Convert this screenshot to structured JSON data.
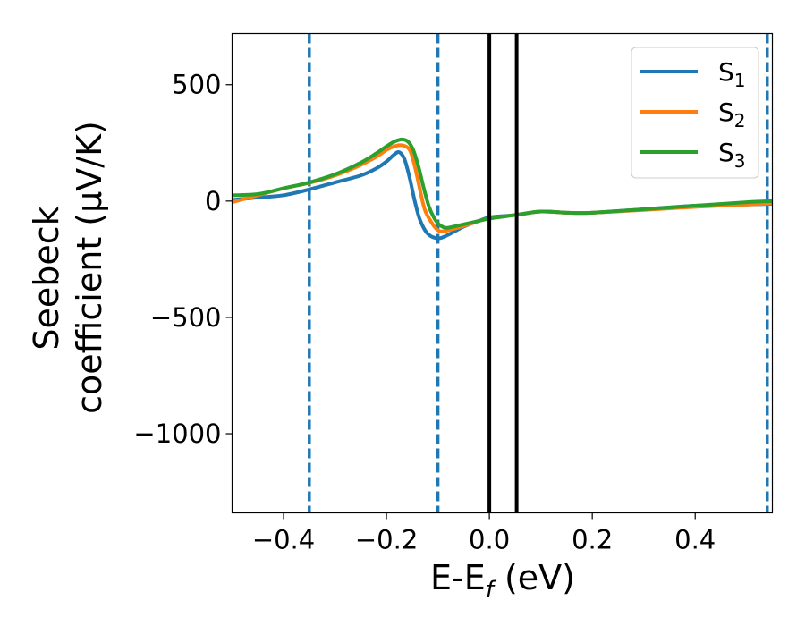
{
  "chart_data": {
    "type": "line",
    "title": "",
    "xlabel_main": "E-E",
    "xlabel_sub": "f",
    "xlabel_unit": " (eV)",
    "ylabel_line1": "Seebeck",
    "ylabel_line2": "coefficient  (μV/K)",
    "xlim": [
      -0.5,
      0.55
    ],
    "ylim": [
      -1340,
      720
    ],
    "xticks": [
      -0.4,
      -0.2,
      0.0,
      0.2,
      0.4
    ],
    "xtick_labels": [
      "−0.4",
      "−0.2",
      "0.0",
      "0.2",
      "0.4"
    ],
    "yticks": [
      500,
      0,
      -500,
      -1000
    ],
    "ytick_labels": [
      "500",
      "0",
      "−500",
      "−1000"
    ],
    "legend_position": "top-right",
    "vlines_dashed": {
      "color": "#1f77b4",
      "x": [
        -0.35,
        -0.1,
        0.54
      ]
    },
    "vlines_solid": {
      "color": "#000000",
      "x": [
        0.0,
        0.053
      ]
    },
    "series": [
      {
        "name": "S",
        "sub": "1",
        "color": "#1f77b4",
        "x": [
          -0.5,
          -0.45,
          -0.4,
          -0.35,
          -0.3,
          -0.25,
          -0.22,
          -0.2,
          -0.185,
          -0.175,
          -0.165,
          -0.155,
          -0.145,
          -0.135,
          -0.12,
          -0.1,
          -0.08,
          -0.05,
          -0.02,
          0.0,
          0.05,
          0.1,
          0.15,
          0.2,
          0.3,
          0.4,
          0.5,
          0.55
        ],
        "y": [
          5,
          15,
          25,
          50,
          80,
          110,
          140,
          170,
          200,
          210,
          180,
          100,
          0,
          -80,
          -140,
          -160,
          -145,
          -110,
          -85,
          -70,
          -60,
          -45,
          -50,
          -50,
          -35,
          -20,
          -15,
          -12
        ]
      },
      {
        "name": "S",
        "sub": "2",
        "color": "#ff7f0e",
        "x": [
          -0.5,
          -0.45,
          -0.4,
          -0.35,
          -0.3,
          -0.25,
          -0.22,
          -0.2,
          -0.185,
          -0.17,
          -0.155,
          -0.145,
          -0.135,
          -0.125,
          -0.11,
          -0.1,
          -0.09,
          -0.07,
          -0.04,
          -0.02,
          0.0,
          0.05,
          0.1,
          0.15,
          0.2,
          0.3,
          0.4,
          0.5,
          0.55
        ],
        "y": [
          -5,
          25,
          55,
          78,
          110,
          155,
          190,
          220,
          235,
          240,
          220,
          150,
          50,
          -40,
          -100,
          -125,
          -130,
          -120,
          -100,
          -85,
          -75,
          -60,
          -45,
          -50,
          -50,
          -38,
          -25,
          -15,
          -10
        ]
      },
      {
        "name": "S",
        "sub": "3",
        "color": "#2ca02c",
        "x": [
          -0.5,
          -0.45,
          -0.4,
          -0.35,
          -0.3,
          -0.25,
          -0.22,
          -0.2,
          -0.185,
          -0.17,
          -0.158,
          -0.148,
          -0.138,
          -0.128,
          -0.118,
          -0.108,
          -0.098,
          -0.085,
          -0.07,
          -0.05,
          -0.02,
          0.0,
          0.05,
          0.1,
          0.15,
          0.2,
          0.3,
          0.4,
          0.5,
          0.55
        ],
        "y": [
          25,
          30,
          55,
          80,
          115,
          165,
          205,
          235,
          255,
          265,
          255,
          220,
          150,
          60,
          -20,
          -70,
          -100,
          -115,
          -110,
          -100,
          -85,
          -75,
          -60,
          -45,
          -50,
          -50,
          -35,
          -20,
          -5,
          0
        ]
      }
    ]
  }
}
